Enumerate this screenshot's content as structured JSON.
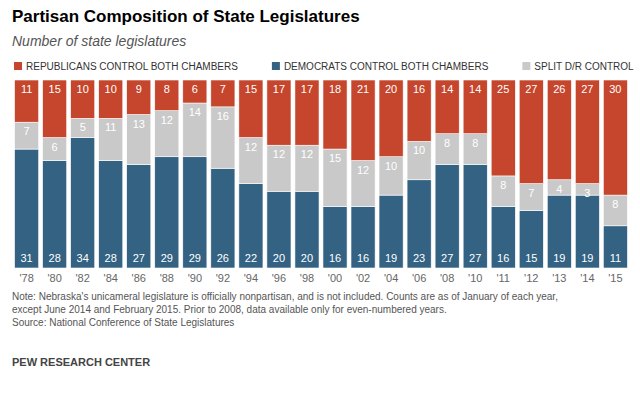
{
  "chart_data": {
    "type": "bar",
    "stacked": true,
    "data_labels": true,
    "tick_labels": "x",
    "title": "Partisan Composition of State Legislatures",
    "subtitle": "Number of state legislatures",
    "categories": [
      "'78",
      "'80",
      "'82",
      "'84",
      "'86",
      "'88",
      "'90",
      "'92",
      "'94",
      "'96",
      "'98",
      "'00",
      "'02",
      "'04",
      "'06",
      "'08",
      "'10",
      "'11",
      "'12",
      "'13",
      "'14",
      "'15"
    ],
    "series": [
      {
        "name": "REPUBLICANS CONTROL BOTH CHAMBERS",
        "color": "#c5462c",
        "values": [
          11,
          15,
          10,
          10,
          9,
          8,
          6,
          7,
          15,
          17,
          17,
          18,
          21,
          20,
          16,
          14,
          14,
          25,
          27,
          26,
          27,
          30
        ]
      },
      {
        "name": "DEMOCRATS CONTROL BOTH CHAMBERS",
        "color": "#336283",
        "values": [
          31,
          28,
          34,
          28,
          27,
          29,
          29,
          26,
          22,
          20,
          20,
          16,
          16,
          19,
          23,
          27,
          27,
          16,
          15,
          19,
          19,
          11
        ]
      },
      {
        "name": "SPLIT D/R CONTROL",
        "color": "#c9c9c9",
        "values": [
          7,
          6,
          5,
          11,
          13,
          12,
          14,
          16,
          12,
          12,
          12,
          15,
          12,
          10,
          10,
          8,
          8,
          8,
          7,
          4,
          3,
          8
        ]
      }
    ],
    "ylim": [
      0,
      49
    ],
    "note": [
      "Note: Nebraska's unicameral legislature is officially nonpartisan, and is not included. Counts are as of January of each year,",
      "except June 2014 and February 2015. Prior to 2008, data available only for even-numbered years.",
      "Source: National Conference of State Legislatures"
    ],
    "credit": "PEW RESEARCH CENTER"
  }
}
